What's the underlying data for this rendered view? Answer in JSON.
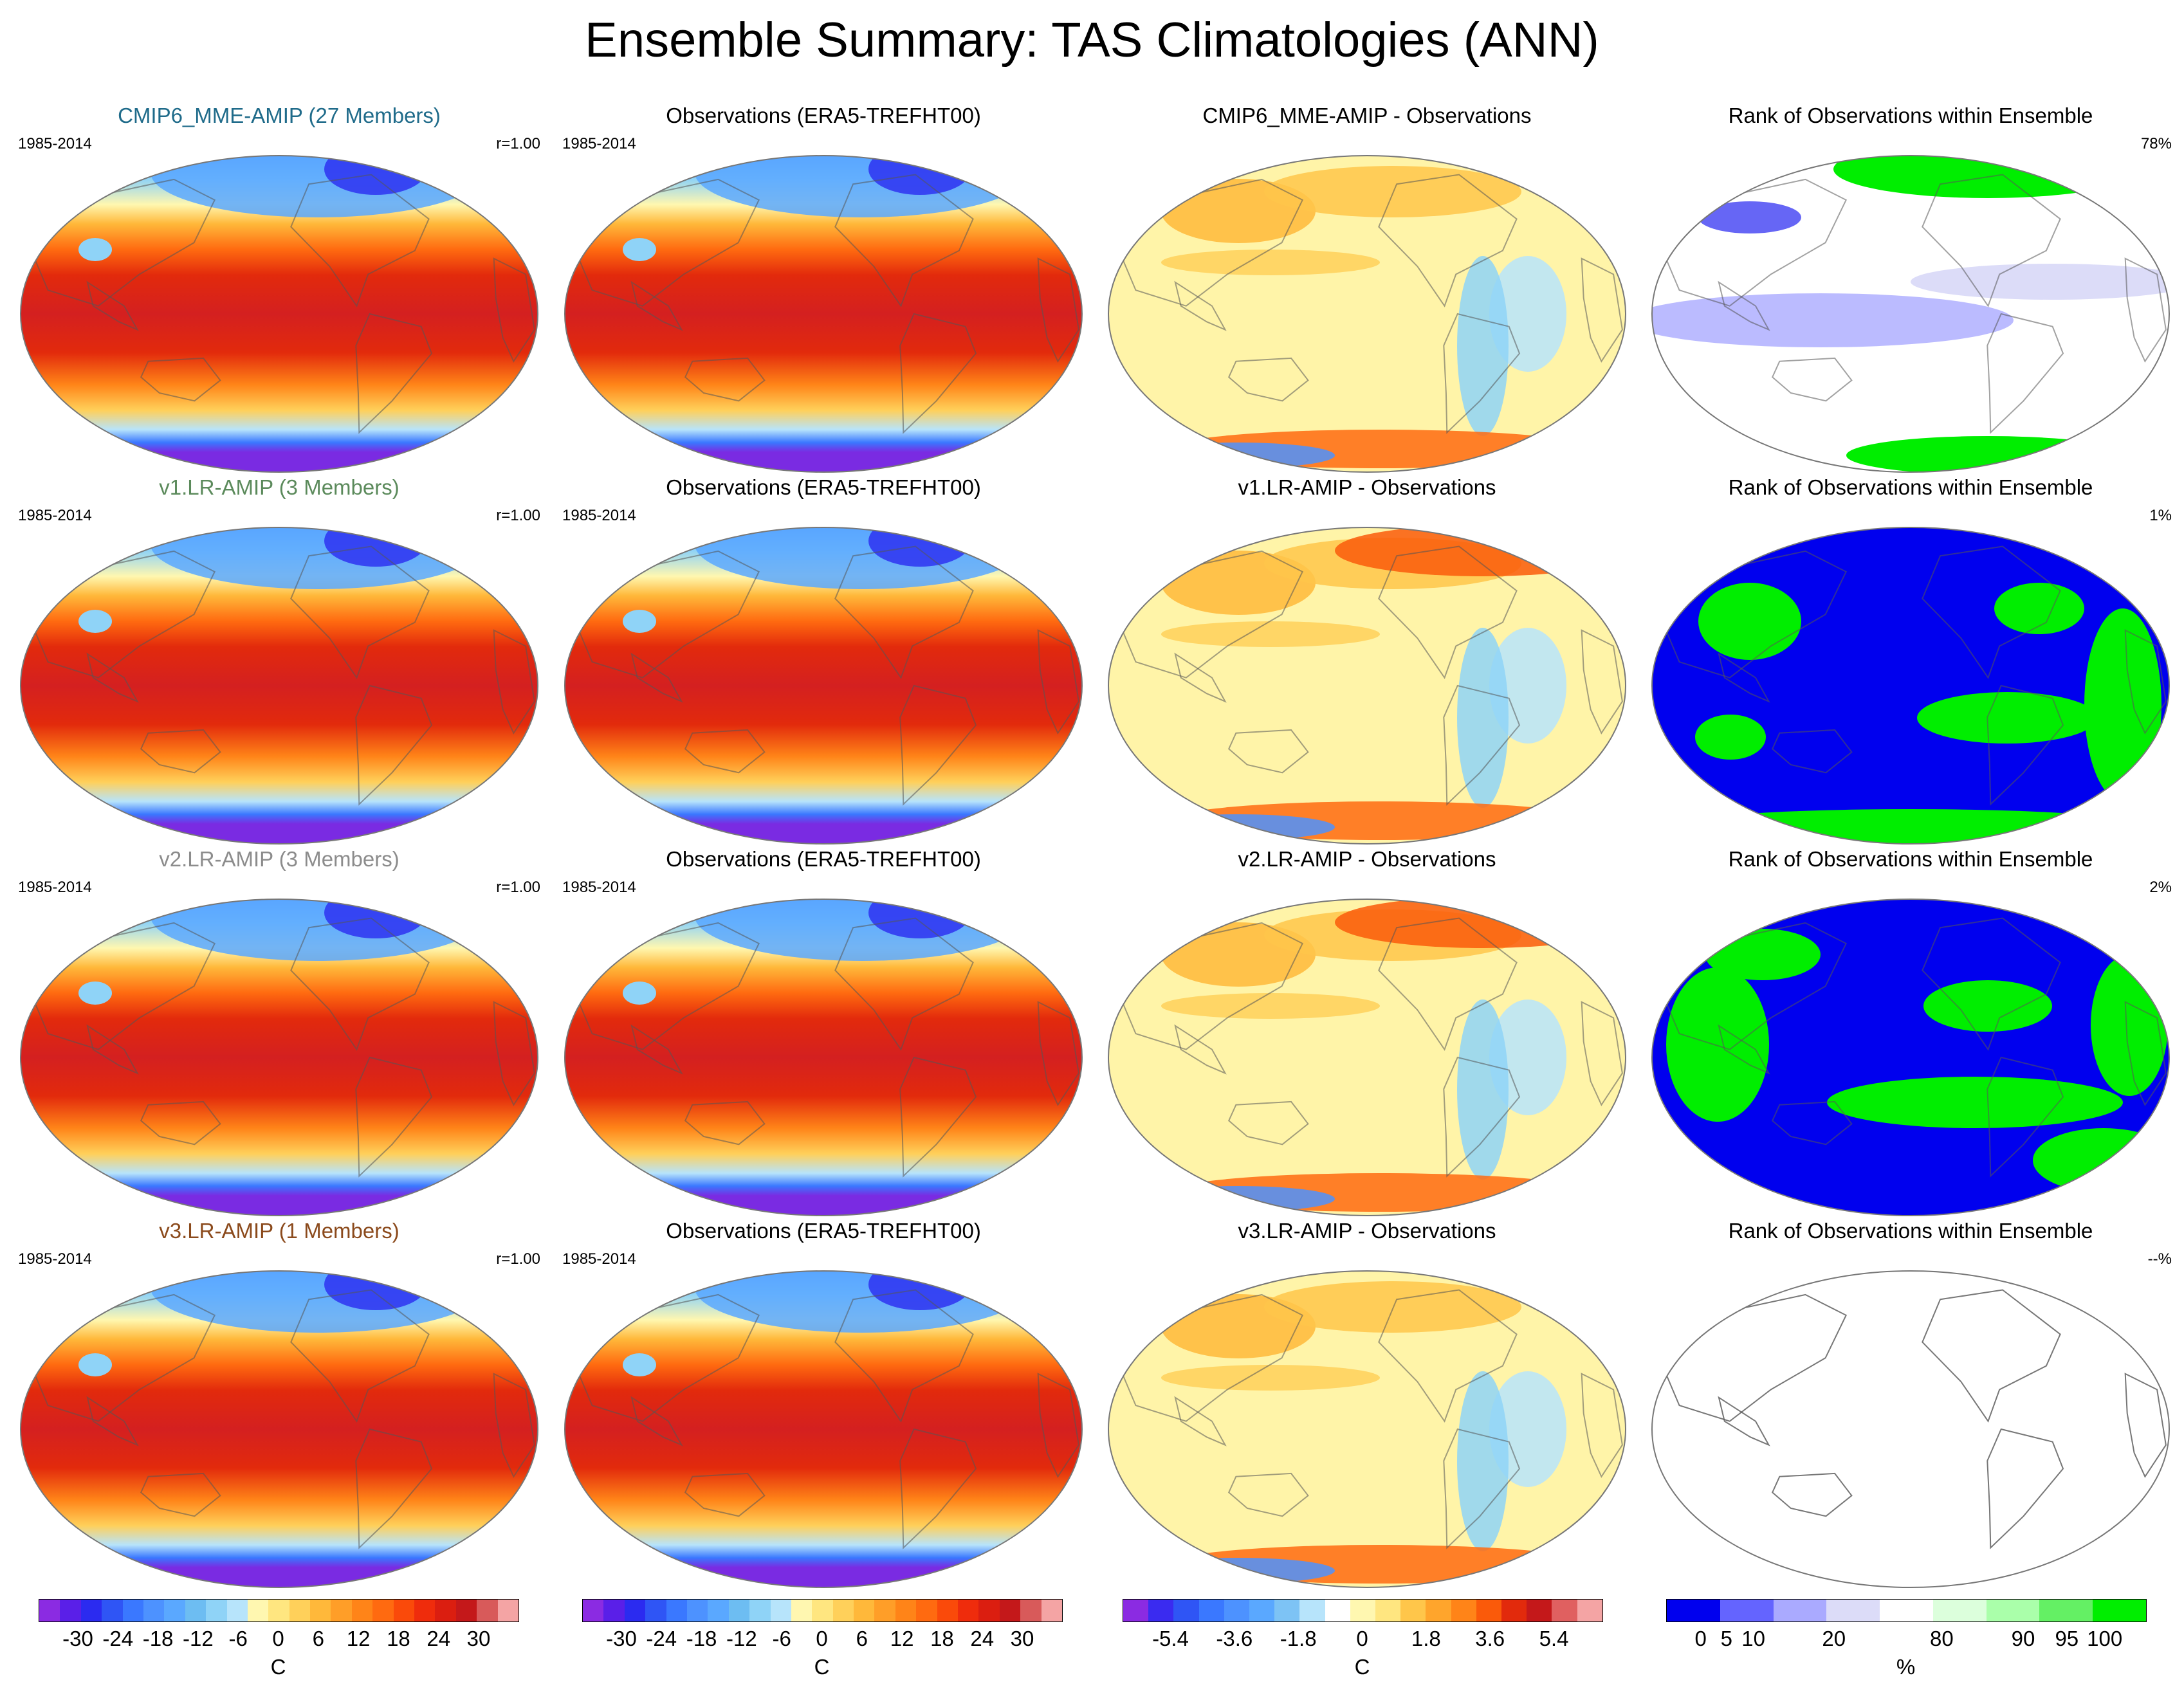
{
  "title": "Ensemble Summary: TAS Climatologies (ANN)",
  "rows": [
    {
      "model": {
        "title": "CMIP6_MME-AMIP (27 Members)",
        "title_color": "#1f6b8a",
        "period": "1985-2014",
        "corr": "r=1.00"
      },
      "obs": {
        "title": "Observations (ERA5-TREFHT00)",
        "period": "1985-2014"
      },
      "bias": {
        "title": "CMIP6_MME-AMIP - Observations"
      },
      "rank": {
        "title": "Rank of Observations within Ensemble",
        "pct": "78%"
      }
    },
    {
      "model": {
        "title": "v1.LR-AMIP (3 Members)",
        "title_color": "#5b8a5b",
        "period": "1985-2014",
        "corr": "r=1.00"
      },
      "obs": {
        "title": "Observations (ERA5-TREFHT00)",
        "period": "1985-2014"
      },
      "bias": {
        "title": "v1.LR-AMIP - Observations"
      },
      "rank": {
        "title": "Rank of Observations within Ensemble",
        "pct": "1%"
      }
    },
    {
      "model": {
        "title": "v2.LR-AMIP (3 Members)",
        "title_color": "#8c8c8c",
        "period": "1985-2014",
        "corr": "r=1.00"
      },
      "obs": {
        "title": "Observations (ERA5-TREFHT00)",
        "period": "1985-2014"
      },
      "bias": {
        "title": "v2.LR-AMIP - Observations"
      },
      "rank": {
        "title": "Rank of Observations within Ensemble",
        "pct": "2%"
      }
    },
    {
      "model": {
        "title": "v3.LR-AMIP (1 Members)",
        "title_color": "#8b4a1c",
        "period": "1985-2014",
        "corr": "r=1.00"
      },
      "obs": {
        "title": "Observations (ERA5-TREFHT00)",
        "period": "1985-2014"
      },
      "bias": {
        "title": "v3.LR-AMIP - Observations"
      },
      "rank": {
        "title": "Rank of Observations within Ensemble",
        "pct": "--%"
      }
    }
  ],
  "colorbars": {
    "temperature": {
      "unit": "C",
      "ticks": [
        "-30",
        "-24",
        "-18",
        "-12",
        "-6",
        "0",
        "6",
        "12",
        "18",
        "24",
        "30"
      ],
      "colors": [
        "#8b2be2",
        "#5a1fe8",
        "#2b2bf0",
        "#2f55f5",
        "#3a78ff",
        "#4d92ff",
        "#5aa8ff",
        "#6dbdf2",
        "#8fd3f7",
        "#b7e4fb",
        "#fff7b0",
        "#ffe680",
        "#ffd05a",
        "#ffb83a",
        "#ff9e28",
        "#ff8418",
        "#ff6a10",
        "#fa4a0a",
        "#ef2c0c",
        "#db1e10",
        "#c4181a",
        "#d85a5a",
        "#f4a4a4"
      ]
    },
    "bias": {
      "unit": "C",
      "ticks": [
        "-5.4",
        "-3.6",
        "-1.8",
        "0",
        "1.8",
        "3.6",
        "5.4"
      ],
      "colors": [
        "#8b2be2",
        "#3a2bf0",
        "#2f55f5",
        "#3a78ff",
        "#4d92ff",
        "#5aa8ff",
        "#7dc3f5",
        "#b7e4fb",
        "#ffffff",
        "#fff7b0",
        "#ffe680",
        "#ffc64a",
        "#ffa52c",
        "#ff8418",
        "#fa5a0a",
        "#e22a0c",
        "#c4181a",
        "#e06060",
        "#f4a4a4"
      ]
    },
    "rank": {
      "unit": "%",
      "ticks": [
        "0",
        "5",
        "10",
        "20",
        "80",
        "90",
        "95",
        "100"
      ],
      "colors": [
        "#0000ee",
        "#6464ff",
        "#aaaaff",
        "#dcdcf8",
        "#ffffff",
        "#dcffdc",
        "#aaffaa",
        "#64f064",
        "#00ee00"
      ]
    },
    "geo_colors": {
      "land_outline": "#555555",
      "tropics": "#d42020",
      "antarctic": "#7a2be2",
      "arctic": "#5aa8ff",
      "bias_base": "#fff4a8",
      "rank_low": "#0000ee",
      "rank_high": "#00ee00"
    }
  }
}
